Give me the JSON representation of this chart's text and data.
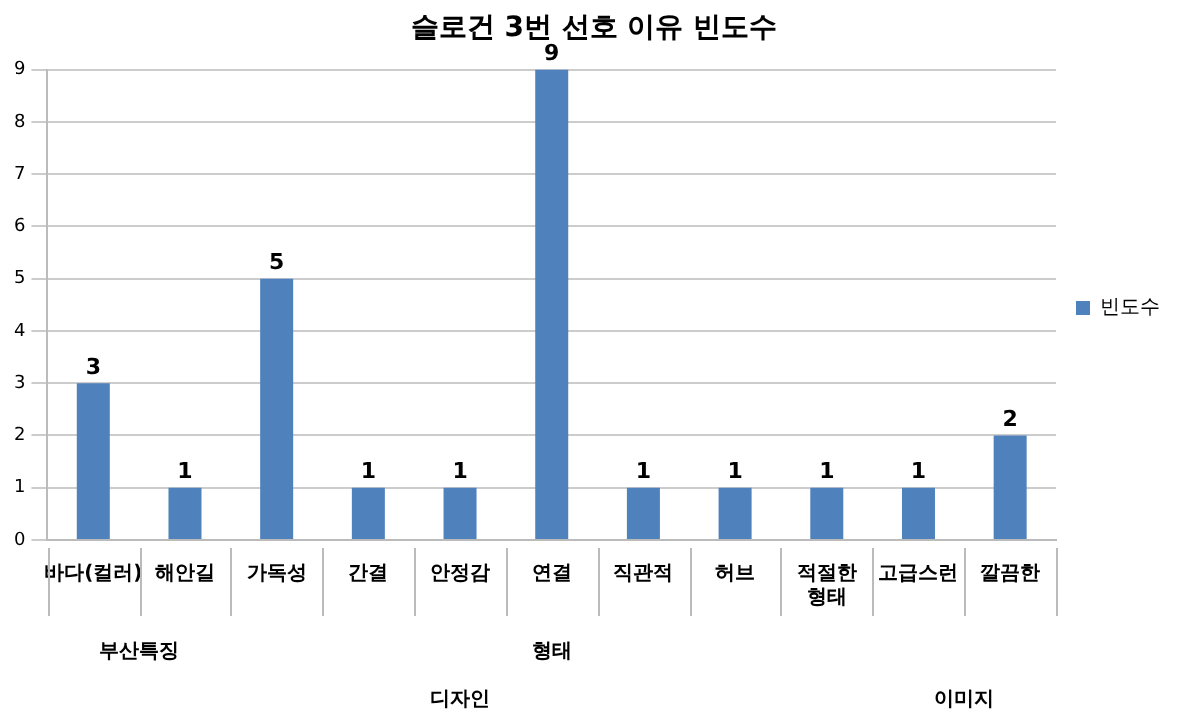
{
  "chart_data": {
    "type": "bar",
    "title": "슬로건 3번 선호 이유 빈도수",
    "categories": [
      "바다(컬러)",
      "해안길",
      "가독성",
      "간결",
      "안정감",
      "연결",
      "직관적",
      "허브",
      "적절한 형태",
      "고급스런",
      "깔끔한"
    ],
    "series": [
      {
        "name": "빈도수",
        "color": "#4f81bd",
        "values": [
          3,
          1,
          5,
          1,
          1,
          9,
          1,
          1,
          1,
          1,
          2
        ]
      }
    ],
    "ylim": [
      0,
      9
    ],
    "yticks": [
      0,
      1,
      2,
      3,
      4,
      5,
      6,
      7,
      8,
      9
    ],
    "grid": "y",
    "legend": "right",
    "data_labels": true,
    "annotations": [
      "부산특징",
      "형태",
      "디자인",
      "이미지"
    ]
  }
}
